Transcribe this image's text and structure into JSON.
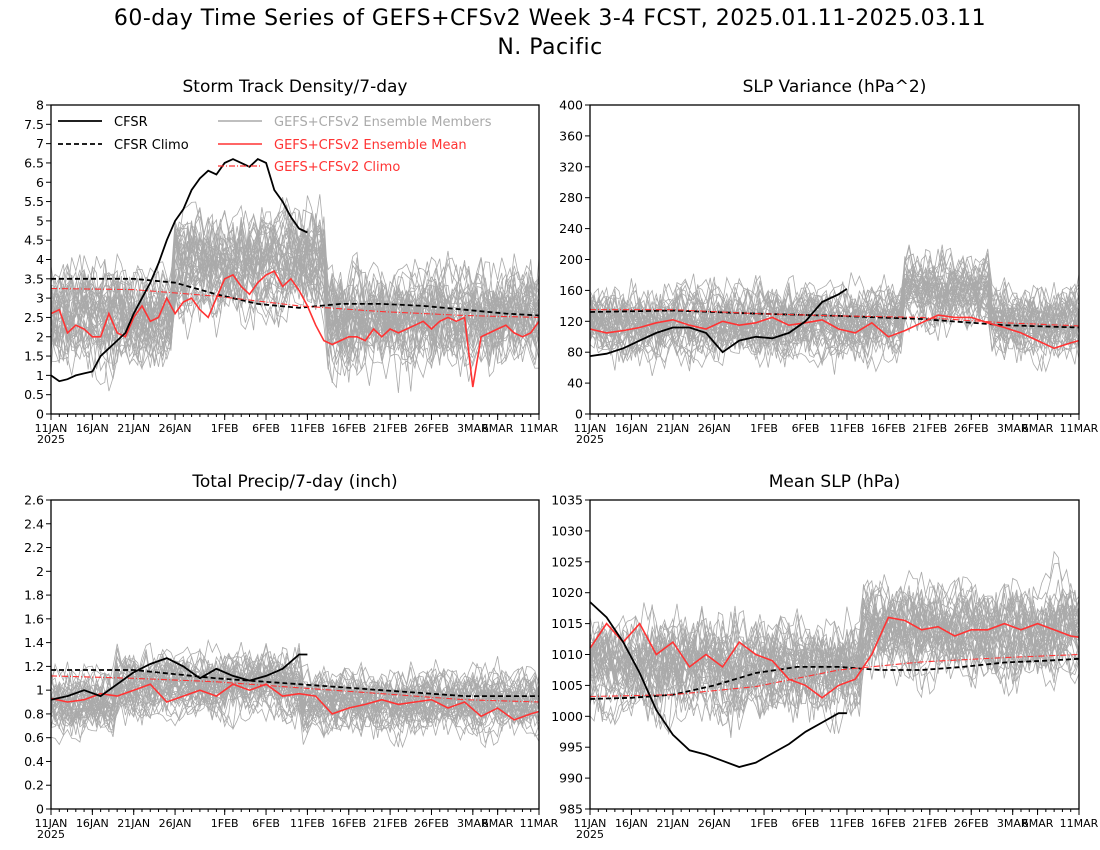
{
  "page": {
    "title_line1": "60-day Time Series of GEFS+CFSv2 Week 3-4 FCST, 2025.01.11-2025.03.11",
    "title_line2": "N. Pacific"
  },
  "colors": {
    "cfsr": "#000000",
    "ensemble_members": "#aaaaaa",
    "ensemble_mean": "#ff3333",
    "gefs_climo": "#ff3333"
  },
  "chart_data": [
    {
      "id": "storm-track",
      "type": "line",
      "title": "Storm Track Density/7-day",
      "x_tick_labels": [
        "11JAN",
        "16JAN",
        "21JAN",
        "26JAN",
        "1FEB",
        "6FEB",
        "11FEB",
        "16FEB",
        "21FEB",
        "26FEB",
        "3MAR",
        "6MAR",
        "11MAR"
      ],
      "x_tick_days": [
        0,
        5,
        10,
        15,
        21,
        26,
        31,
        36,
        41,
        46,
        51,
        54,
        59
      ],
      "x_year_label": "2025",
      "xlim_days": [
        0,
        59
      ],
      "ylim": [
        0,
        8
      ],
      "y_ticks": [
        "0",
        "0.5",
        "1",
        "1.5",
        "2",
        "2.5",
        "3",
        "3.5",
        "4",
        "4.5",
        "5",
        "5.5",
        "6",
        "6.5",
        "7",
        "7.5",
        "8"
      ],
      "legend": {
        "placement": "top",
        "entries": [
          {
            "label": "CFSR",
            "style": "solid-black"
          },
          {
            "label": "CFSR Climo",
            "style": "dashed-black"
          },
          {
            "label": "GEFS+CFSv2 Ensemble Members",
            "style": "solid-gray"
          },
          {
            "label": "GEFS+CFSv2 Ensemble Mean",
            "style": "solid-red"
          },
          {
            "label": "GEFS+CFSv2 Climo",
            "style": "dashdot-red"
          }
        ]
      },
      "ensemble_spread": {
        "center": 2.5,
        "amplitude": 1.7,
        "peak_window_days": [
          15,
          33
        ],
        "peak_center": 4.0,
        "count": 40
      },
      "series": [
        {
          "name": "CFSR",
          "x_days": [
            0,
            1,
            2,
            3,
            4,
            5,
            6,
            7,
            8,
            9,
            10,
            11,
            12,
            13,
            14,
            15,
            16,
            17,
            18,
            19,
            20,
            21,
            22,
            23,
            24,
            25,
            26,
            27,
            28,
            29,
            30,
            31
          ],
          "values": [
            1.0,
            0.85,
            0.9,
            1.0,
            1.05,
            1.1,
            1.5,
            1.7,
            1.9,
            2.1,
            2.6,
            3.0,
            3.4,
            3.9,
            4.5,
            5.0,
            5.3,
            5.8,
            6.1,
            6.3,
            6.2,
            6.5,
            6.6,
            6.5,
            6.4,
            6.6,
            6.5,
            5.8,
            5.5,
            5.1,
            4.8,
            4.7
          ]
        },
        {
          "name": "CFSR Climo",
          "x_days": [
            0,
            5,
            10,
            15,
            20,
            25,
            30,
            35,
            40,
            45,
            50,
            55,
            59
          ],
          "values": [
            3.5,
            3.5,
            3.5,
            3.4,
            3.1,
            2.85,
            2.75,
            2.85,
            2.85,
            2.8,
            2.7,
            2.6,
            2.55
          ]
        },
        {
          "name": "GEFS+CFSv2 Ensemble Mean",
          "x_days": [
            0,
            1,
            2,
            3,
            4,
            5,
            6,
            7,
            8,
            9,
            10,
            11,
            12,
            13,
            14,
            15,
            16,
            17,
            18,
            19,
            20,
            21,
            22,
            23,
            24,
            25,
            26,
            27,
            28,
            29,
            30,
            31,
            32,
            33,
            34,
            35,
            36,
            37,
            38,
            39,
            40,
            41,
            42,
            43,
            44,
            45,
            46,
            47,
            48,
            49,
            50,
            51,
            52,
            53,
            54,
            55,
            56,
            57,
            58,
            59
          ],
          "values": [
            2.6,
            2.7,
            2.1,
            2.3,
            2.2,
            2.0,
            2.0,
            2.6,
            2.1,
            2.0,
            2.5,
            2.8,
            2.4,
            2.5,
            3.0,
            2.6,
            2.9,
            3.0,
            2.7,
            2.5,
            3.0,
            3.5,
            3.6,
            3.3,
            3.1,
            3.4,
            3.6,
            3.7,
            3.3,
            3.5,
            3.2,
            2.8,
            2.3,
            1.9,
            1.8,
            1.9,
            2.0,
            2.0,
            1.9,
            2.2,
            2.0,
            2.2,
            2.1,
            2.2,
            2.3,
            2.4,
            2.2,
            2.4,
            2.5,
            2.4,
            2.5,
            0.7,
            2.0,
            2.1,
            2.2,
            2.3,
            2.1,
            2.0,
            2.1,
            2.4
          ]
        },
        {
          "name": "GEFS+CFSv2 Climo",
          "x_days": [
            0,
            10,
            20,
            30,
            40,
            50,
            59
          ],
          "values": [
            3.25,
            3.22,
            3.05,
            2.8,
            2.65,
            2.55,
            2.5
          ]
        }
      ]
    },
    {
      "id": "slp-variance",
      "type": "line",
      "title": "SLP Variance (hPa^2)",
      "x_tick_labels": [
        "11JAN",
        "16JAN",
        "21JAN",
        "26JAN",
        "1FEB",
        "6FEB",
        "11FEB",
        "16FEB",
        "21FEB",
        "26FEB",
        "3MAR",
        "6MAR",
        "11MAR"
      ],
      "x_tick_days": [
        0,
        5,
        10,
        15,
        21,
        26,
        31,
        36,
        41,
        46,
        51,
        54,
        59
      ],
      "x_year_label": "2025",
      "xlim_days": [
        0,
        59
      ],
      "ylim": [
        0,
        400
      ],
      "y_ticks": [
        "0",
        "40",
        "80",
        "120",
        "160",
        "200",
        "240",
        "280",
        "320",
        "360",
        "400"
      ],
      "ensemble_spread": {
        "center": 120,
        "amplitude": 60,
        "peak_window_days": [
          38,
          48
        ],
        "peak_center": 160,
        "count": 40
      },
      "series": [
        {
          "name": "CFSR",
          "x_days": [
            0,
            2,
            4,
            6,
            8,
            10,
            12,
            14,
            16,
            18,
            20,
            22,
            24,
            26,
            28,
            30,
            31
          ],
          "values": [
            75,
            78,
            85,
            95,
            105,
            112,
            112,
            105,
            80,
            95,
            100,
            98,
            105,
            120,
            145,
            155,
            162
          ]
        },
        {
          "name": "CFSR Climo",
          "x_days": [
            0,
            10,
            20,
            30,
            40,
            50,
            59
          ],
          "values": [
            132,
            134,
            130,
            127,
            123,
            115,
            112
          ]
        },
        {
          "name": "GEFS+CFSv2 Ensemble Mean",
          "x_days": [
            0,
            2,
            4,
            6,
            8,
            10,
            12,
            14,
            16,
            18,
            20,
            22,
            24,
            26,
            28,
            30,
            32,
            34,
            36,
            38,
            40,
            42,
            44,
            46,
            48,
            50,
            52,
            54,
            56,
            58,
            59
          ],
          "values": [
            110,
            105,
            108,
            112,
            118,
            122,
            115,
            110,
            120,
            115,
            118,
            125,
            115,
            118,
            122,
            110,
            105,
            118,
            100,
            108,
            118,
            128,
            125,
            125,
            118,
            112,
            105,
            95,
            85,
            92,
            95
          ]
        },
        {
          "name": "GEFS+CFSv2 Climo",
          "x_days": [
            0,
            10,
            20,
            30,
            40,
            50,
            59
          ],
          "values": [
            135,
            135,
            130,
            127,
            125,
            118,
            114
          ]
        }
      ]
    },
    {
      "id": "total-precip",
      "type": "line",
      "title": "Total Precip/7-day (inch)",
      "x_tick_labels": [
        "11JAN",
        "16JAN",
        "21JAN",
        "26JAN",
        "1FEB",
        "6FEB",
        "11FEB",
        "16FEB",
        "21FEB",
        "26FEB",
        "3MAR",
        "6MAR",
        "11MAR"
      ],
      "x_tick_days": [
        0,
        5,
        10,
        15,
        21,
        26,
        31,
        36,
        41,
        46,
        51,
        54,
        59
      ],
      "x_year_label": "2025",
      "xlim_days": [
        0,
        59
      ],
      "ylim": [
        0,
        2.6
      ],
      "y_ticks": [
        "0",
        "0.2",
        "0.4",
        "0.6",
        "0.8",
        "1",
        "1.2",
        "1.4",
        "1.6",
        "1.8",
        "2",
        "2.2",
        "2.4",
        "2.6"
      ],
      "ensemble_spread": {
        "center": 0.9,
        "amplitude": 0.35,
        "peak_window_days": [
          8,
          30
        ],
        "peak_center": 1.05,
        "count": 40
      },
      "series": [
        {
          "name": "CFSR",
          "x_days": [
            0,
            2,
            4,
            6,
            8,
            10,
            12,
            14,
            16,
            18,
            20,
            22,
            24,
            26,
            28,
            30,
            31
          ],
          "values": [
            0.92,
            0.95,
            1.0,
            0.95,
            1.05,
            1.15,
            1.22,
            1.27,
            1.2,
            1.1,
            1.18,
            1.12,
            1.08,
            1.12,
            1.18,
            1.3,
            1.3
          ]
        },
        {
          "name": "CFSR Climo",
          "x_days": [
            0,
            10,
            20,
            30,
            40,
            50,
            59
          ],
          "values": [
            1.17,
            1.17,
            1.1,
            1.05,
            1.0,
            0.95,
            0.95
          ]
        },
        {
          "name": "GEFS+CFSv2 Ensemble Mean",
          "x_days": [
            0,
            2,
            4,
            6,
            8,
            10,
            12,
            14,
            16,
            18,
            20,
            22,
            24,
            26,
            28,
            30,
            32,
            34,
            36,
            38,
            40,
            42,
            44,
            46,
            48,
            50,
            52,
            54,
            56,
            58,
            59
          ],
          "values": [
            0.93,
            0.9,
            0.92,
            0.97,
            0.95,
            1.0,
            1.05,
            0.9,
            0.95,
            1.0,
            0.95,
            1.05,
            1.0,
            1.05,
            0.95,
            0.97,
            0.95,
            0.8,
            0.85,
            0.88,
            0.92,
            0.88,
            0.9,
            0.92,
            0.85,
            0.9,
            0.78,
            0.85,
            0.75,
            0.8,
            0.82
          ]
        },
        {
          "name": "GEFS+CFSv2 Climo",
          "x_days": [
            0,
            10,
            20,
            30,
            40,
            50,
            59
          ],
          "values": [
            1.12,
            1.1,
            1.07,
            1.02,
            0.97,
            0.92,
            0.9
          ]
        }
      ]
    },
    {
      "id": "mean-slp",
      "type": "line",
      "title": "Mean SLP (hPa)",
      "x_tick_labels": [
        "11JAN",
        "16JAN",
        "21JAN",
        "26JAN",
        "1FEB",
        "6FEB",
        "11FEB",
        "16FEB",
        "21FEB",
        "26FEB",
        "3MAR",
        "6MAR",
        "11MAR"
      ],
      "x_tick_days": [
        0,
        5,
        10,
        15,
        21,
        26,
        31,
        36,
        41,
        46,
        51,
        54,
        59
      ],
      "x_year_label": "2025",
      "xlim_days": [
        0,
        59
      ],
      "ylim": [
        985,
        1035
      ],
      "y_ticks": [
        "985",
        "990",
        "995",
        "1000",
        "1005",
        "1010",
        "1015",
        "1020",
        "1025",
        "1030",
        "1035"
      ],
      "ensemble_spread": {
        "center": 1008,
        "amplitude": 10,
        "peak_window_days": [
          33,
          59
        ],
        "peak_center": 1014,
        "count": 40
      },
      "series": [
        {
          "name": "CFSR",
          "x_days": [
            0,
            2,
            4,
            6,
            8,
            10,
            12,
            14,
            16,
            18,
            20,
            22,
            24,
            26,
            28,
            30,
            31
          ],
          "values": [
            1018.5,
            1016,
            1012,
            1007,
            1001,
            997,
            994.5,
            993.8,
            992.8,
            991.8,
            992.5,
            994,
            995.5,
            997.5,
            999,
            1000.5,
            1000.5
          ]
        },
        {
          "name": "CFSR Climo",
          "x_days": [
            0,
            5,
            10,
            15,
            20,
            25,
            30,
            35,
            40,
            45,
            50,
            55,
            59
          ],
          "values": [
            1002.8,
            1003,
            1003.5,
            1005,
            1007,
            1008,
            1008,
            1007.5,
            1007.5,
            1008,
            1008.7,
            1009,
            1009.3
          ]
        },
        {
          "name": "GEFS+CFSv2 Ensemble Mean",
          "x_days": [
            0,
            2,
            4,
            6,
            8,
            10,
            12,
            14,
            16,
            18,
            20,
            22,
            24,
            26,
            28,
            30,
            32,
            34,
            36,
            38,
            40,
            42,
            44,
            46,
            48,
            50,
            52,
            54,
            56,
            58,
            59
          ],
          "values": [
            1011,
            1015,
            1012,
            1015,
            1010,
            1012,
            1008,
            1010,
            1008,
            1012,
            1010,
            1009,
            1006,
            1005,
            1003,
            1005,
            1006,
            1010,
            1016,
            1015.5,
            1014,
            1014.5,
            1013,
            1014,
            1014,
            1015,
            1014,
            1015,
            1014,
            1013,
            1012.8
          ]
        },
        {
          "name": "GEFS+CFSv2 Climo",
          "x_days": [
            0,
            10,
            20,
            30,
            40,
            50,
            59
          ],
          "values": [
            1003.2,
            1003.5,
            1004.8,
            1007.5,
            1008.8,
            1009.5,
            1010
          ]
        }
      ]
    }
  ]
}
